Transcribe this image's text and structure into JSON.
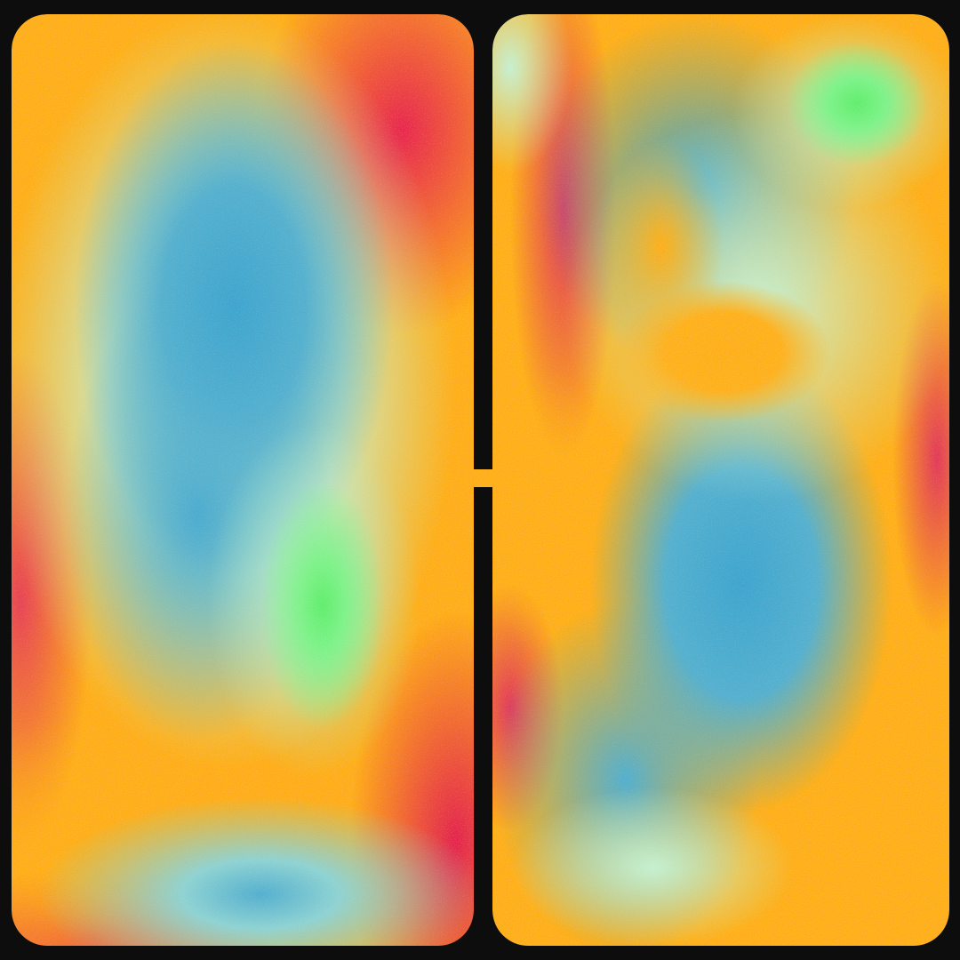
{
  "artwork": {
    "background_color": "#0d0d0d",
    "palette": [
      "#ffb014",
      "#e8274f",
      "#3ea6cf",
      "#c8f0d2",
      "#62ee6e"
    ]
  }
}
